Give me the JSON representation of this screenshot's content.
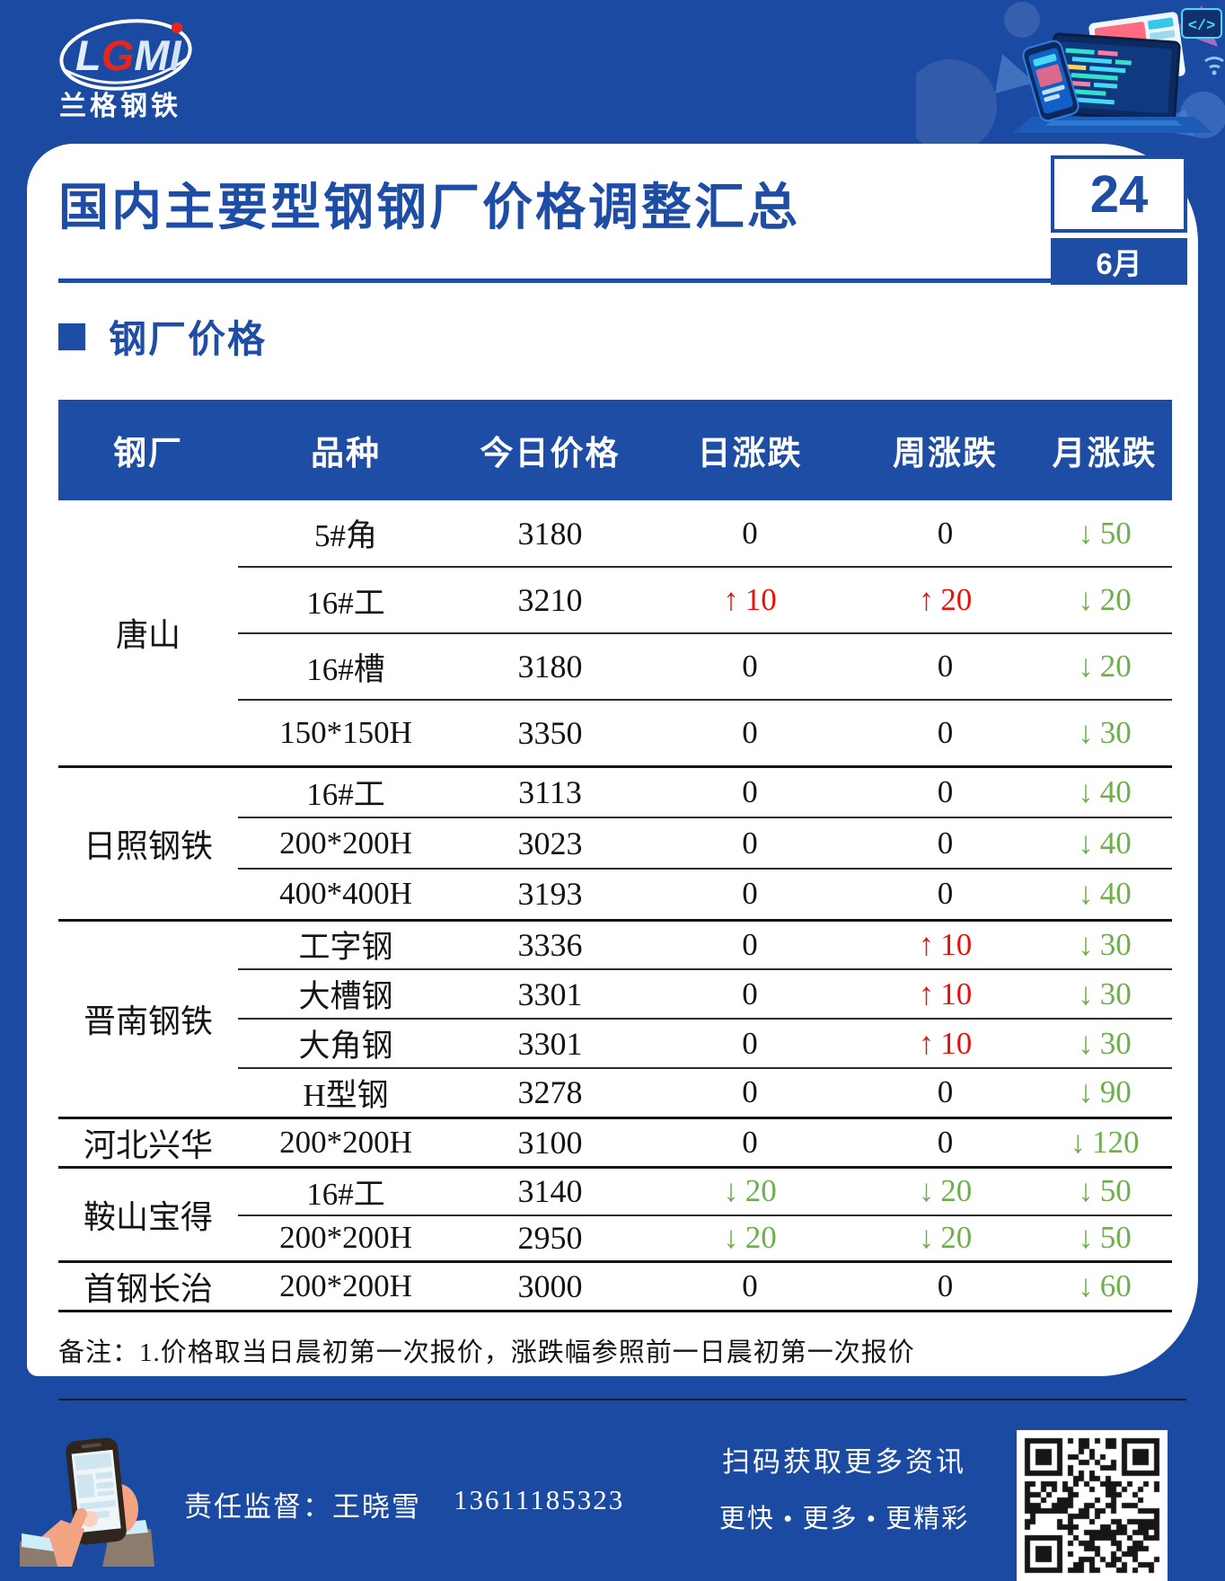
{
  "brand": {
    "logo_letters": [
      "L",
      "G",
      "M",
      "I"
    ],
    "logo_sub": "兰格钢铁"
  },
  "header": {
    "title": "国内主要型钢钢厂价格调整汇总",
    "date_day": "24",
    "date_month": "6月"
  },
  "section": {
    "title": "钢厂价格"
  },
  "table": {
    "columns": [
      "钢厂",
      "品种",
      "今日价格",
      "日涨跌",
      "周涨跌",
      "月涨跌"
    ],
    "groups": [
      {
        "mill": "唐山",
        "rows": [
          {
            "variety": "5#角",
            "price": "3180",
            "daily": {
              "dir": "flat",
              "value": "0"
            },
            "weekly": {
              "dir": "flat",
              "value": "0"
            },
            "monthly": {
              "dir": "down",
              "value": "50"
            }
          },
          {
            "variety": "16#工",
            "price": "3210",
            "daily": {
              "dir": "up",
              "value": "10"
            },
            "weekly": {
              "dir": "up",
              "value": "20"
            },
            "monthly": {
              "dir": "down",
              "value": "20"
            }
          },
          {
            "variety": "16#槽",
            "price": "3180",
            "daily": {
              "dir": "flat",
              "value": "0"
            },
            "weekly": {
              "dir": "flat",
              "value": "0"
            },
            "monthly": {
              "dir": "down",
              "value": "20"
            }
          },
          {
            "variety": "150*150H",
            "price": "3350",
            "daily": {
              "dir": "flat",
              "value": "0"
            },
            "weekly": {
              "dir": "flat",
              "value": "0"
            },
            "monthly": {
              "dir": "down",
              "value": "30"
            }
          }
        ]
      },
      {
        "mill": "日照钢铁",
        "rows": [
          {
            "variety": "16#工",
            "price": "3113",
            "daily": {
              "dir": "flat",
              "value": "0"
            },
            "weekly": {
              "dir": "flat",
              "value": "0"
            },
            "monthly": {
              "dir": "down",
              "value": "40"
            }
          },
          {
            "variety": "200*200H",
            "price": "3023",
            "daily": {
              "dir": "flat",
              "value": "0"
            },
            "weekly": {
              "dir": "flat",
              "value": "0"
            },
            "monthly": {
              "dir": "down",
              "value": "40"
            }
          },
          {
            "variety": "400*400H",
            "price": "3193",
            "daily": {
              "dir": "flat",
              "value": "0"
            },
            "weekly": {
              "dir": "flat",
              "value": "0"
            },
            "monthly": {
              "dir": "down",
              "value": "40"
            }
          }
        ]
      },
      {
        "mill": "晋南钢铁",
        "rows": [
          {
            "variety": "工字钢",
            "price": "3336",
            "daily": {
              "dir": "flat",
              "value": "0"
            },
            "weekly": {
              "dir": "up",
              "value": "10"
            },
            "monthly": {
              "dir": "down",
              "value": "30"
            }
          },
          {
            "variety": "大槽钢",
            "price": "3301",
            "daily": {
              "dir": "flat",
              "value": "0"
            },
            "weekly": {
              "dir": "up",
              "value": "10"
            },
            "monthly": {
              "dir": "down",
              "value": "30"
            }
          },
          {
            "variety": "大角钢",
            "price": "3301",
            "daily": {
              "dir": "flat",
              "value": "0"
            },
            "weekly": {
              "dir": "up",
              "value": "10"
            },
            "monthly": {
              "dir": "down",
              "value": "30"
            }
          },
          {
            "variety": "H型钢",
            "price": "3278",
            "daily": {
              "dir": "flat",
              "value": "0"
            },
            "weekly": {
              "dir": "flat",
              "value": "0"
            },
            "monthly": {
              "dir": "down",
              "value": "90"
            }
          }
        ]
      },
      {
        "mill": "河北兴华",
        "rows": [
          {
            "variety": "200*200H",
            "price": "3100",
            "daily": {
              "dir": "flat",
              "value": "0"
            },
            "weekly": {
              "dir": "flat",
              "value": "0"
            },
            "monthly": {
              "dir": "down",
              "value": "120"
            }
          }
        ]
      },
      {
        "mill": "鞍山宝得",
        "rows": [
          {
            "variety": "16#工",
            "price": "3140",
            "daily": {
              "dir": "down",
              "value": "20"
            },
            "weekly": {
              "dir": "down",
              "value": "20"
            },
            "monthly": {
              "dir": "down",
              "value": "50"
            }
          },
          {
            "variety": "200*200H",
            "price": "2950",
            "daily": {
              "dir": "down",
              "value": "20"
            },
            "weekly": {
              "dir": "down",
              "value": "20"
            },
            "monthly": {
              "dir": "down",
              "value": "50"
            }
          }
        ]
      },
      {
        "mill": "首钢长治",
        "rows": [
          {
            "variety": "200*200H",
            "price": "3000",
            "daily": {
              "dir": "flat",
              "value": "0"
            },
            "weekly": {
              "dir": "flat",
              "value": "0"
            },
            "monthly": {
              "dir": "down",
              "value": "60"
            }
          }
        ]
      }
    ],
    "note": "备注：1.价格取当日晨初第一次报价，涨跌幅参照前一日晨初第一次报价"
  },
  "footer": {
    "supervisor": "责任监督：王晓雪",
    "phone": "13611185323",
    "caption1": "扫码获取更多资讯",
    "caption2": "更快 • 更多 • 更精彩"
  },
  "glyphs": {
    "up": "↑",
    "down": "↓"
  },
  "colors": {
    "brand_blue": "#1e4da6",
    "page_bg": "#1b4aa2",
    "up_red": "#e8120b",
    "down_green": "#6fae4e",
    "logo_red": "#e8251d"
  }
}
